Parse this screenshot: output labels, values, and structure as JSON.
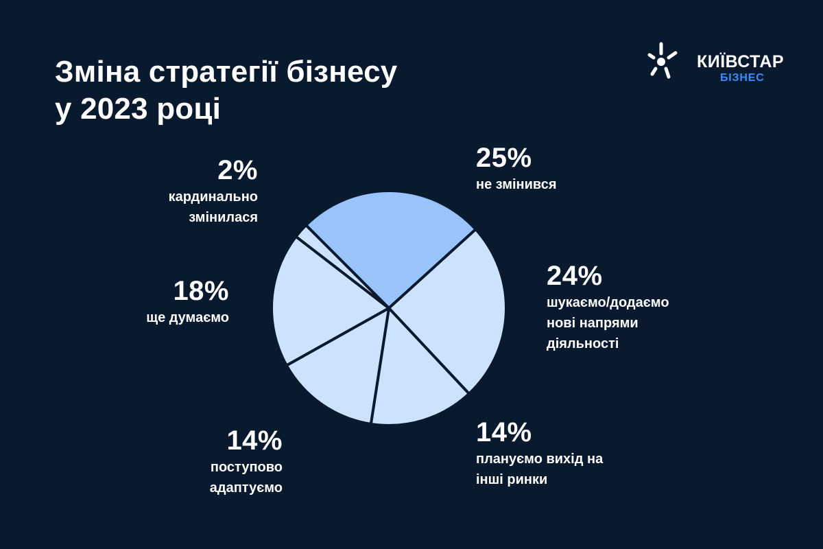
{
  "header": {
    "title_line1": "Зміна стратегії бізнесу",
    "title_line2": "у 2023 році"
  },
  "logo": {
    "name": "КИЇВСТАР",
    "sub": "БІЗНЕС",
    "icon": "kyivstar-star-icon"
  },
  "colors": {
    "background": "#0a1a2e",
    "highlight": "#99c4fb",
    "slice": "#cde3fd",
    "accent": "#3d8bff"
  },
  "chart_data": {
    "type": "pie",
    "title": "Зміна стратегії бізнесу у 2023 році",
    "slices": [
      {
        "value": 25,
        "pct_label": "25%",
        "desc": "не змінився",
        "highlight": true
      },
      {
        "value": 24,
        "pct_label": "24%",
        "desc": "шукаємо/додаємо\nнові напрями\nдіяльності",
        "highlight": false
      },
      {
        "value": 14,
        "pct_label": "14%",
        "desc": "плануємо вихід на\nінші ринки",
        "highlight": false
      },
      {
        "value": 14,
        "pct_label": "14%",
        "desc": "поступово\nадаптуємо",
        "highlight": false
      },
      {
        "value": 18,
        "pct_label": "18%",
        "desc": "ще думаємо",
        "highlight": false
      },
      {
        "value": 2,
        "pct_label": "2%",
        "desc": "кардинально\nзмінилася",
        "highlight": false
      }
    ]
  }
}
